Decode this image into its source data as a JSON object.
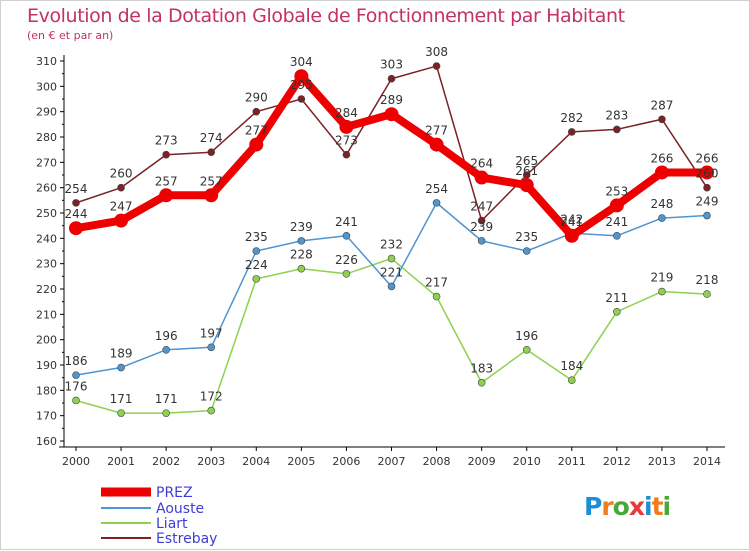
{
  "title": "Evolution de la Dotation Globale de Fonctionnement par Habitant",
  "subtitle": "(en € et par an)",
  "logo": {
    "text": "Proxiti",
    "letter_colors": [
      "#1a8fd6",
      "#f07d1b",
      "#4aa83a",
      "#e8383d",
      "#1a8fd6",
      "#f07d1b",
      "#4aa83a"
    ]
  },
  "chart_data": {
    "type": "line",
    "title": "Evolution de la Dotation Globale de Fonctionnement par Habitant",
    "subtitle": "(en € et par an)",
    "x": [
      "2000",
      "2001",
      "2002",
      "2003",
      "2004",
      "2005",
      "2006",
      "2007",
      "2008",
      "2009",
      "2010",
      "2011",
      "2012",
      "2013",
      "2014"
    ],
    "ylim": [
      160,
      310
    ],
    "yticks": [
      160,
      170,
      180,
      190,
      200,
      210,
      220,
      230,
      240,
      250,
      260,
      270,
      280,
      290,
      300,
      310
    ],
    "grid": false,
    "legend_position": "bottom-left",
    "series": [
      {
        "name": "PREZ",
        "color": "#ee0000",
        "values": [
          244,
          247,
          257,
          257,
          277,
          304,
          284,
          289,
          277,
          264,
          261,
          241,
          253,
          266,
          266
        ]
      },
      {
        "name": "Aouste",
        "color": "#4f95d0",
        "values": [
          186,
          189,
          196,
          197,
          235,
          239,
          241,
          221,
          254,
          239,
          235,
          242,
          241,
          248,
          249
        ]
      },
      {
        "name": "Liart",
        "color": "#8fd14f",
        "values": [
          176,
          171,
          171,
          172,
          224,
          228,
          226,
          232,
          217,
          183,
          196,
          184,
          211,
          219,
          218
        ]
      },
      {
        "name": "Estrebay",
        "color": "#7a2226",
        "values": [
          254,
          260,
          273,
          274,
          290,
          295,
          273,
          303,
          308,
          247,
          265,
          282,
          283,
          287,
          260
        ]
      }
    ]
  }
}
